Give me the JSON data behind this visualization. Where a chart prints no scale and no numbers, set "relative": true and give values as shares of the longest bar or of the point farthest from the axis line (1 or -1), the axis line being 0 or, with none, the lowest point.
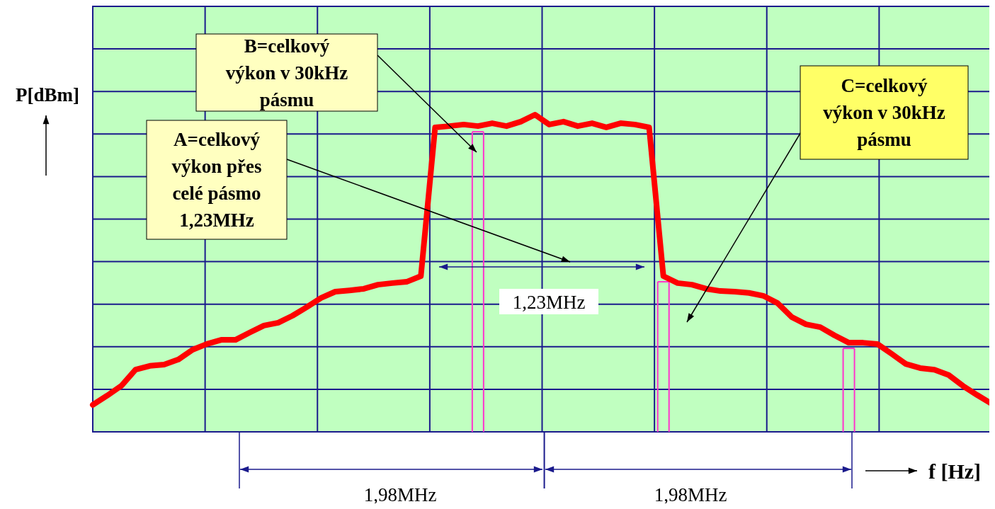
{
  "chart_data": {
    "type": "line",
    "relative": true,
    "grid": true,
    "ylabel": "P[dBm]",
    "xlabel": "f [Hz]",
    "categories": [
      null,
      null,
      null,
      null,
      null,
      null,
      null,
      null,
      null,
      null,
      null,
      null,
      null,
      null,
      null,
      null,
      null,
      null,
      null,
      null,
      null,
      null,
      null,
      null,
      null,
      null,
      null,
      null,
      null,
      null,
      null,
      null,
      null,
      null,
      null,
      null,
      null,
      null,
      null,
      null,
      null,
      null,
      null,
      null,
      null,
      null,
      null,
      null,
      null,
      null,
      null,
      null,
      null,
      null,
      null,
      null,
      null,
      null,
      null,
      null,
      null,
      null,
      null,
      null
    ],
    "series": [
      {
        "color": "#ff0000",
        "values": [
          0.085,
          0.114,
          0.145,
          0.196,
          0.208,
          0.212,
          0.228,
          0.259,
          0.277,
          0.29,
          0.29,
          0.313,
          0.335,
          0.344,
          0.366,
          0.393,
          0.422,
          0.442,
          0.446,
          0.451,
          0.464,
          0.469,
          0.473,
          0.491,
          0.96,
          0.964,
          0.969,
          0.964,
          0.973,
          0.964,
          0.978,
          1,
          0.969,
          0.978,
          0.964,
          0.973,
          0.96,
          0.973,
          0.969,
          0.96,
          0.491,
          0.469,
          0.464,
          0.451,
          0.444,
          0.442,
          0.438,
          0.429,
          0.406,
          0.362,
          0.339,
          0.33,
          0.304,
          0.281,
          0.281,
          0.277,
          0.246,
          0.214,
          0.201,
          0.196,
          0.179,
          0.145,
          0.116,
          0.089
        ]
      }
    ],
    "annotations": [
      "B=celkový výkon v 30kHz pásmu",
      "A=celkový výkon přes celé pásmo 1,23MHz",
      "C=celkový výkon v 30kHz pásmu",
      "1,23MHz",
      "1,98MHz",
      "1,98MHz"
    ]
  }
}
